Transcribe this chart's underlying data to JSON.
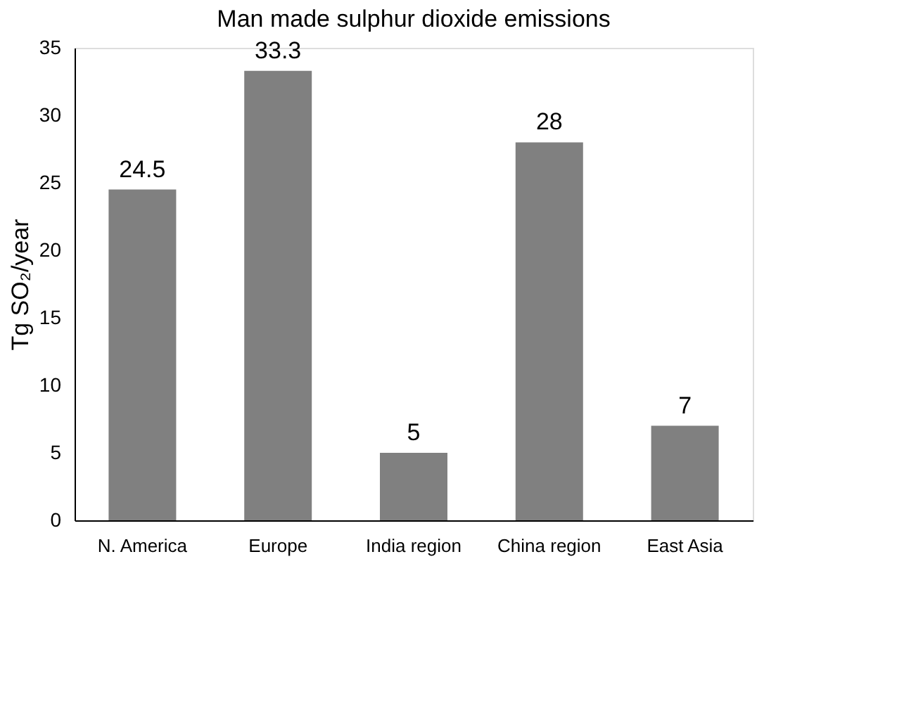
{
  "chart_data": {
    "type": "bar",
    "title": "Man made sulphur dioxide emissions",
    "ylabel": "Tg SO₂/year",
    "categories": [
      "N. America",
      "Europe",
      "India region",
      "China region",
      "East Asia"
    ],
    "values": [
      24.5,
      33.3,
      5,
      28,
      7
    ],
    "color": "#808080",
    "ylim": [
      0,
      35
    ],
    "yticks": [
      0,
      5,
      10,
      15,
      20,
      25,
      30,
      35
    ],
    "grid": false,
    "data_labels": true
  }
}
